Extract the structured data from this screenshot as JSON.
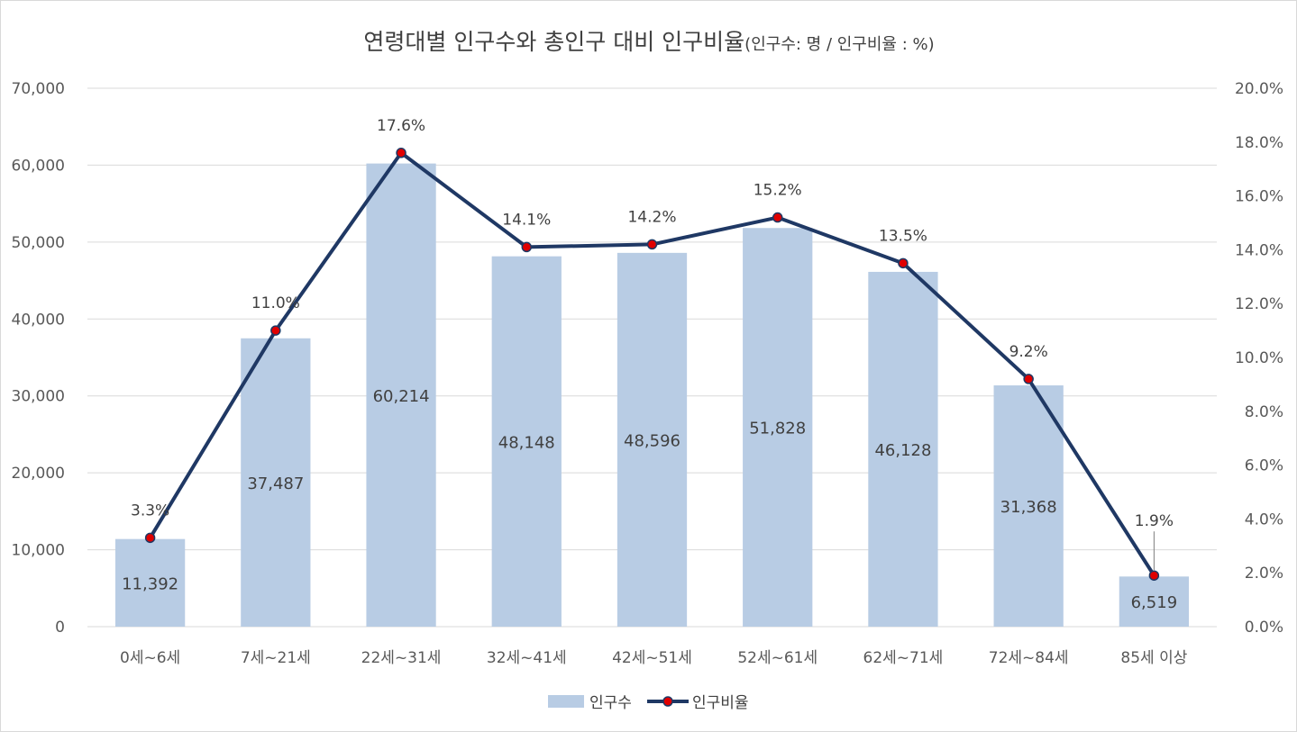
{
  "chart_data": {
    "type": "bar",
    "title": "연령대별 인구수와 총인구 대비 인구비율",
    "subtitle": "(인구수: 명 / 인구비율 : %)",
    "categories": [
      "0세~6세",
      "7세~21세",
      "22세~31세",
      "32세~41세",
      "42세~51세",
      "52세~61세",
      "62세~71세",
      "72세~84세",
      "85세 이상"
    ],
    "series": [
      {
        "name": "인구수",
        "type": "bar",
        "axis": "left",
        "color": "#b8cce4",
        "values": [
          11392,
          37487,
          60214,
          48148,
          48596,
          51828,
          46128,
          31368,
          6519
        ],
        "labels": [
          "11,392",
          "37,487",
          "60,214",
          "48,148",
          "48,596",
          "51,828",
          "46,128",
          "31,368",
          "6,519"
        ]
      },
      {
        "name": "인구비율",
        "type": "line",
        "axis": "right",
        "color": "#1f3864",
        "marker_color": "#e00000",
        "values": [
          3.3,
          11.0,
          17.6,
          14.1,
          14.2,
          15.2,
          13.5,
          9.2,
          1.9
        ],
        "labels": [
          "3.3%",
          "11.0%",
          "17.6%",
          "14.1%",
          "14.2%",
          "15.2%",
          "13.5%",
          "9.2%",
          "1.9%"
        ]
      }
    ],
    "y_left": {
      "ylim": [
        0,
        70000
      ],
      "ticks": [
        "0",
        "10,000",
        "20,000",
        "30,000",
        "40,000",
        "50,000",
        "60,000",
        "70,000"
      ]
    },
    "y_right": {
      "ylim": [
        0,
        20
      ],
      "ticks": [
        "0.0%",
        "2.0%",
        "4.0%",
        "6.0%",
        "8.0%",
        "10.0%",
        "12.0%",
        "14.0%",
        "16.0%",
        "18.0%",
        "20.0%"
      ]
    },
    "grid": true,
    "legend": "bottom"
  }
}
